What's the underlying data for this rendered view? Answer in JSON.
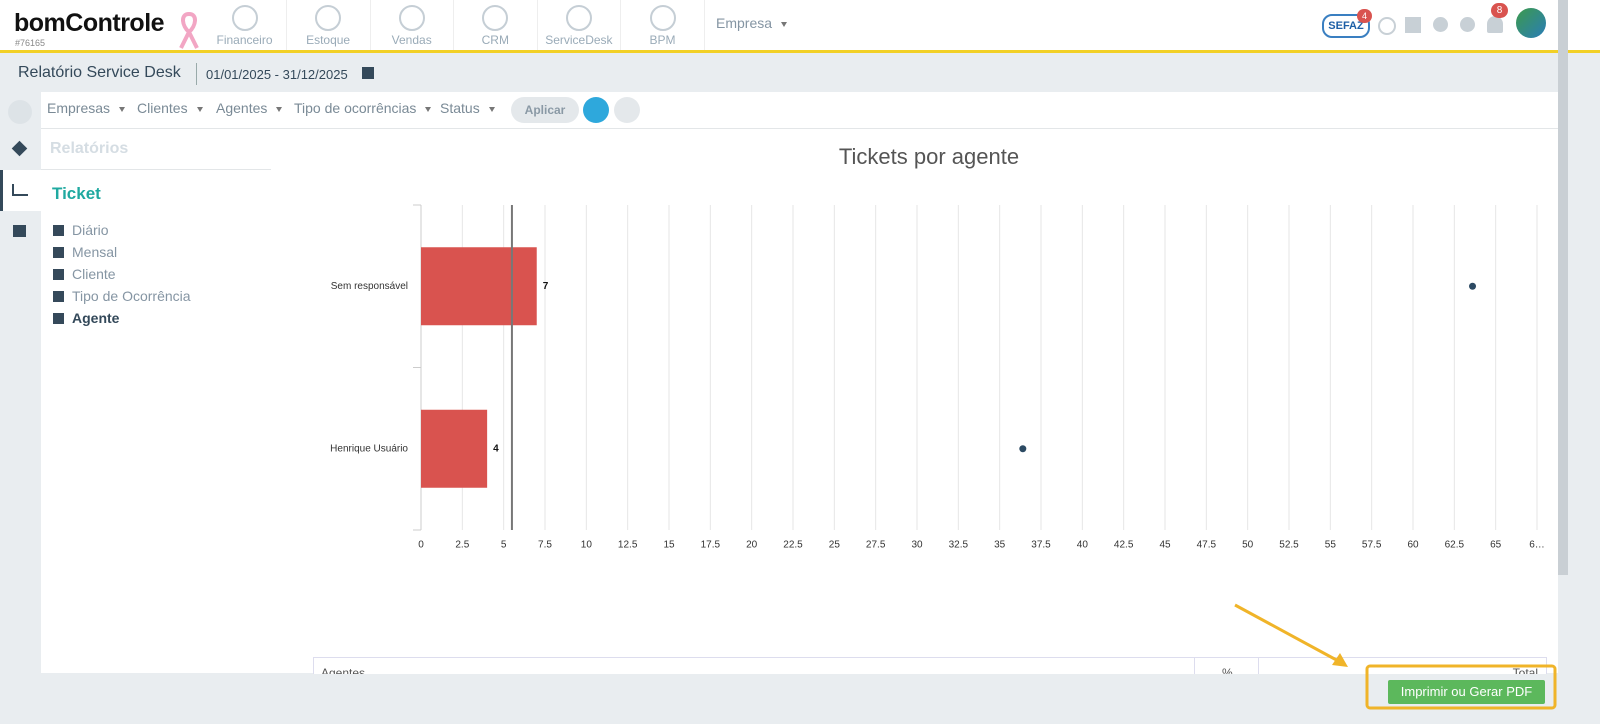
{
  "header": {
    "logo": "bomControle",
    "account": "#76165",
    "nav": [
      "Financeiro",
      "Estoque",
      "Vendas",
      "CRM",
      "ServiceDesk",
      "BPM"
    ],
    "company": "Empresa",
    "sefaz": "SEFAZ",
    "sefaz_badge": 4,
    "notifications_badge": 8
  },
  "subheader": {
    "title": "Relatório Service Desk",
    "date_range": "01/01/2025 - 31/12/2025"
  },
  "filters": {
    "items": [
      "Empresas",
      "Clientes",
      "Agentes",
      "Tipo de ocorrências",
      "Status"
    ],
    "apply": "Aplicar"
  },
  "sidebar": {
    "heading": "Relatórios",
    "section": "Ticket",
    "items": [
      "Diário",
      "Mensal",
      "Cliente",
      "Tipo de Ocorrência",
      "Agente"
    ],
    "active_item": 4
  },
  "chart_data": {
    "type": "bar",
    "orientation": "horizontal",
    "title": "Tickets por agente",
    "categories": [
      "Sem responsável",
      "Henrique Usuário"
    ],
    "series": [
      {
        "values": [
          7,
          4
        ],
        "color": "#d9534f"
      },
      {
        "values": [
          63.6,
          36.4
        ],
        "color": "#2c4a63",
        "marker": "dot"
      }
    ],
    "reference_line": 5.5,
    "xlim": [
      0,
      67.5
    ],
    "xticks": [
      0,
      2.5,
      5,
      7.5,
      10,
      12.5,
      15,
      17.5,
      20,
      22.5,
      25,
      27.5,
      30,
      32.5,
      35,
      37.5,
      40,
      42.5,
      45,
      47.5,
      50,
      52.5,
      55,
      57.5,
      60,
      62.5,
      65,
      {
        "value": 67.5,
        "label": "6…"
      }
    ],
    "grid": true
  },
  "table": {
    "headers": [
      "Agentes",
      "%",
      "Total"
    ]
  },
  "footer": {
    "button": "Imprimir ou Gerar PDF"
  }
}
